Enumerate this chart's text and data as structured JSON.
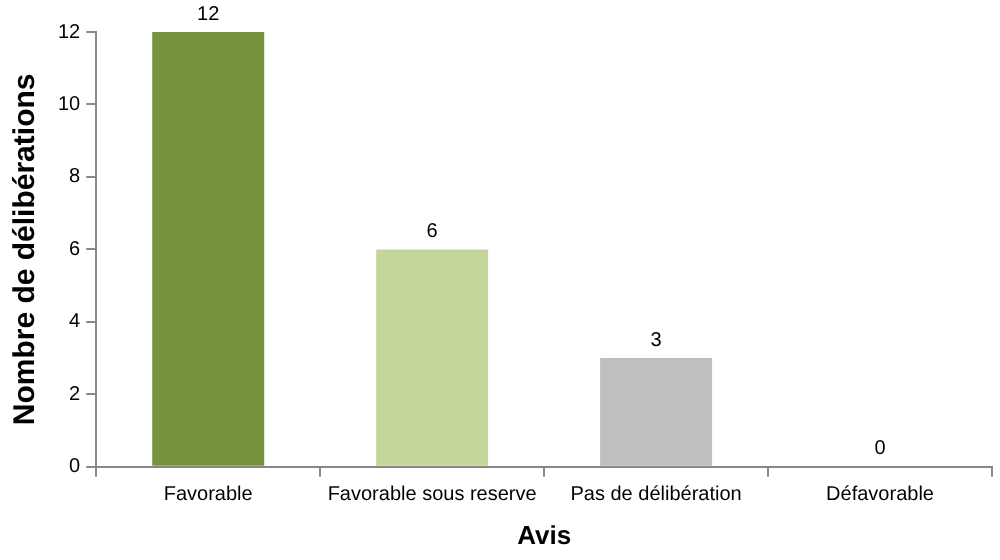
{
  "chart_data": {
    "type": "bar",
    "xlabel": "Avis",
    "ylabel": "Nombre de délibérations",
    "categories": [
      "Favorable",
      "Favorable sous reserve",
      "Pas de délibération",
      "Défavorable"
    ],
    "values": [
      12,
      6,
      3,
      0
    ],
    "colors": [
      "#76923c",
      "#c3d69b",
      "#bfbfbf",
      "#9bbb59"
    ],
    "ylim": [
      0,
      12
    ],
    "yticks": [
      0,
      2,
      4,
      6,
      8,
      10,
      12
    ],
    "grid": false,
    "legend": false,
    "data_labels": true
  }
}
